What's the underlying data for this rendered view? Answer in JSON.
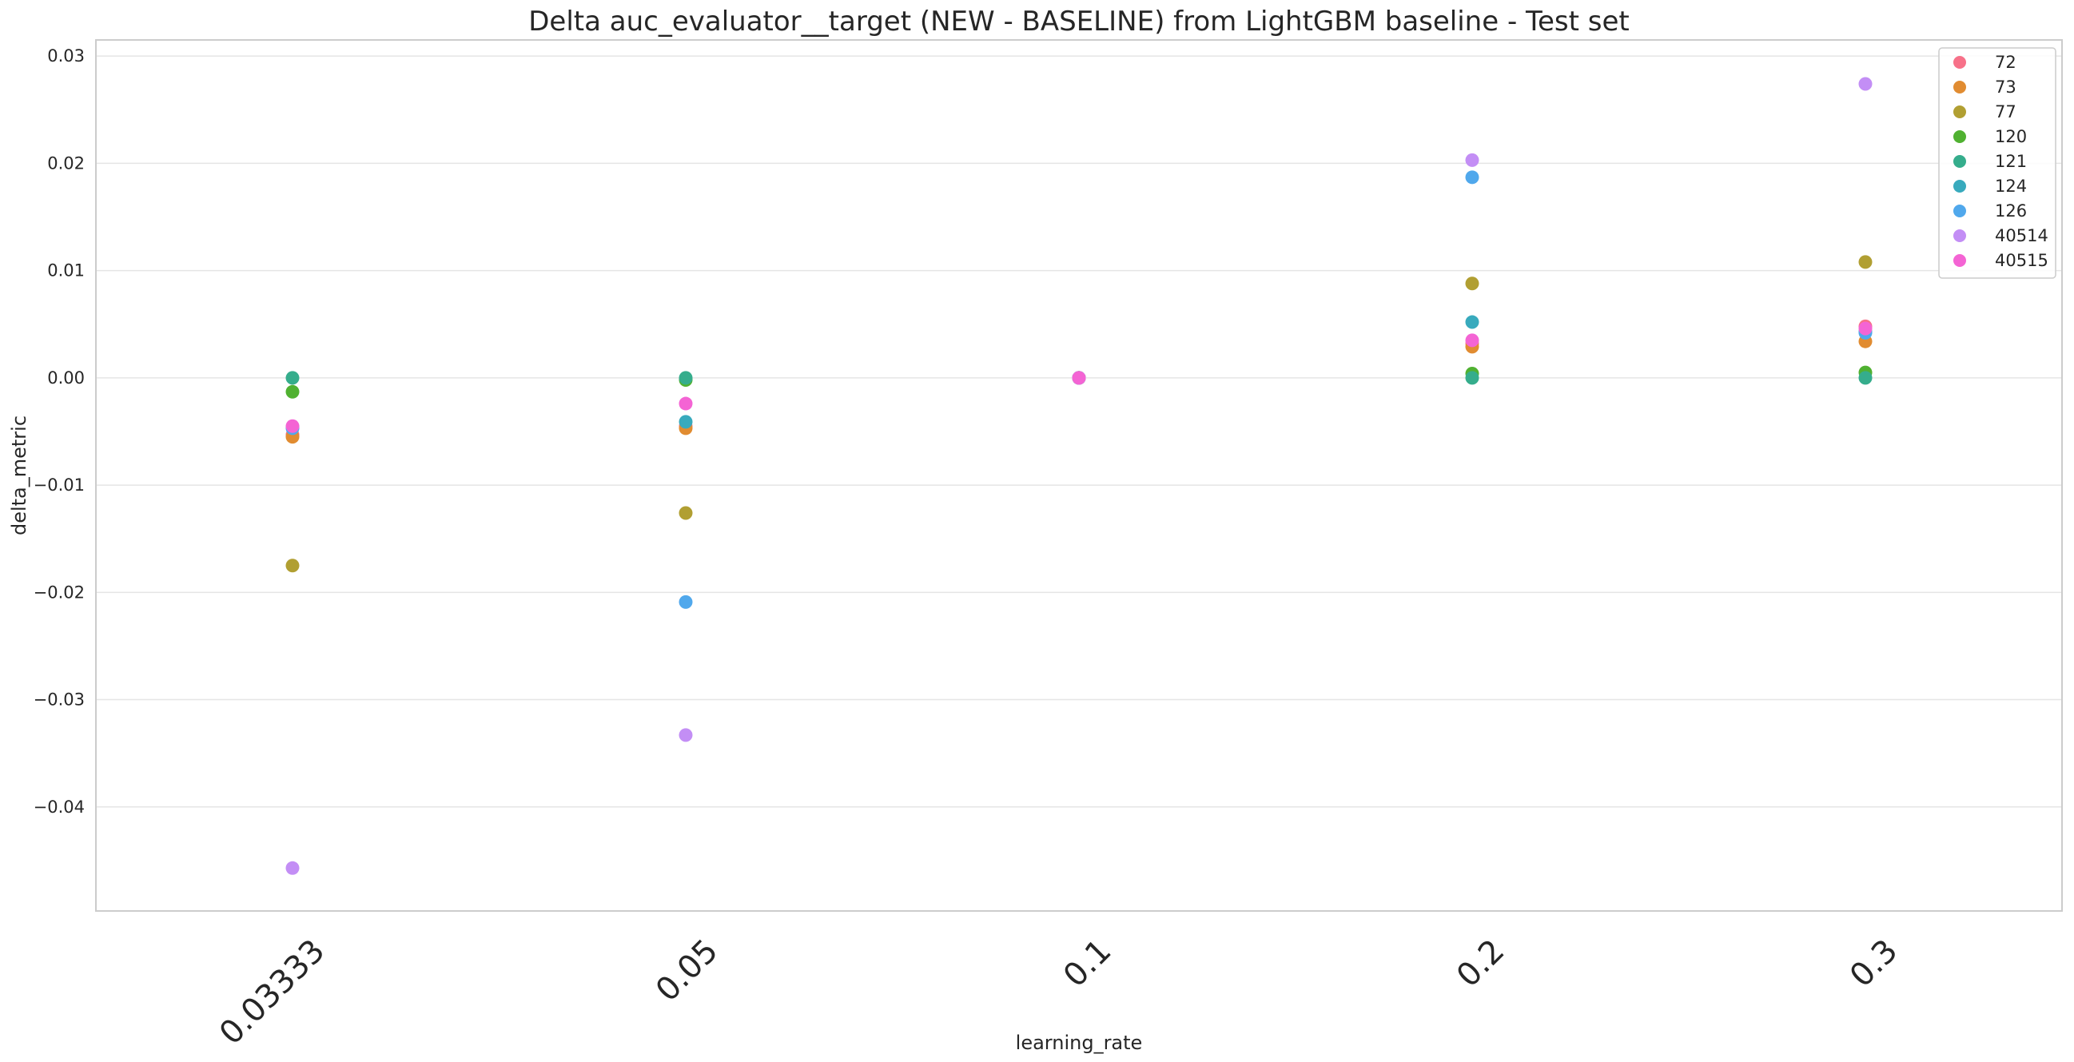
{
  "chart_data": {
    "type": "scatter",
    "title": "Delta auc_evaluator__target (NEW - BASELINE) from LightGBM baseline - Test set",
    "xlabel": "learning_rate",
    "ylabel": "delta_metric",
    "categories": [
      "0.03333",
      "0.05",
      "0.1",
      "0.2",
      "0.3"
    ],
    "yticks": [
      0.03,
      0.02,
      0.01,
      0.0,
      -0.01,
      -0.02,
      -0.03,
      -0.04
    ],
    "ytick_labels": [
      "0.03",
      "0.02",
      "0.01",
      "0.00",
      "−0.01",
      "−0.02",
      "−0.03",
      "−0.04"
    ],
    "ylim": [
      -0.0497,
      0.0315
    ],
    "grid": "horizontal",
    "legend_position": "top-right",
    "series": [
      {
        "name": "72",
        "color": "#f77189",
        "values": [
          -0.0053,
          -0.0045,
          0.0,
          0.0032,
          0.0048
        ]
      },
      {
        "name": "73",
        "color": "#e18c31",
        "values": [
          -0.0055,
          -0.0047,
          0.0,
          0.0029,
          0.0034
        ]
      },
      {
        "name": "77",
        "color": "#b19f32",
        "values": [
          -0.0175,
          -0.0126,
          0.0,
          0.0088,
          0.0108
        ]
      },
      {
        "name": "120",
        "color": "#50b131",
        "values": [
          -0.0013,
          -0.0002,
          0.0,
          0.0004,
          0.0005
        ]
      },
      {
        "name": "121",
        "color": "#35ad8c",
        "values": [
          0.0,
          0.0,
          0.0,
          0.0,
          0.0
        ]
      },
      {
        "name": "124",
        "color": "#38aabd",
        "values": [
          -0.0046,
          -0.0041,
          0.0,
          0.0052,
          0.0043
        ]
      },
      {
        "name": "126",
        "color": "#50a8ec",
        "values": [
          -0.0047,
          -0.0209,
          0.0,
          0.0187,
          0.0042
        ]
      },
      {
        "name": "40514",
        "color": "#c38ef5",
        "values": [
          -0.0457,
          -0.0333,
          0.0,
          0.0203,
          0.0274
        ]
      },
      {
        "name": "40515",
        "color": "#f464d4",
        "values": [
          -0.0045,
          -0.0024,
          0.0,
          0.0035,
          0.0046
        ]
      }
    ]
  }
}
